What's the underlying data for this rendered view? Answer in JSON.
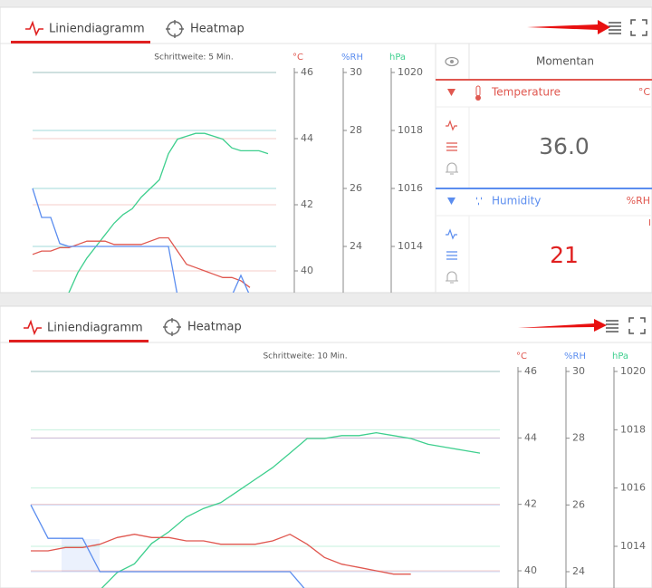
{
  "panels": [
    {
      "tabs": [
        "Liniendiagramm",
        "Heatmap"
      ],
      "chart": {
        "subtitle": "Schrittweite: 5 Min.",
        "axes": [
          {
            "unit": "°C",
            "color": "#e0574f",
            "ticks": [
              46,
              44,
              42,
              40
            ]
          },
          {
            "unit": "%RH",
            "color": "#5b8def",
            "ticks": [
              30,
              28,
              26,
              24
            ]
          },
          {
            "unit": "hPa",
            "color": "#3ecf8e",
            "ticks": [
              1020,
              1018,
              1016,
              1014
            ]
          }
        ],
        "series": [
          {
            "axis": 2,
            "color": "#3ecf8e",
            "values": [
              null,
              null,
              null,
              null,
              1012.4,
              1013.1,
              1013.6,
              1014.0,
              1014.4,
              1014.8,
              1015.1,
              1015.3,
              1015.7,
              1016.0,
              1016.3,
              1017.2,
              1017.7,
              1017.8,
              1017.9,
              1017.9,
              1017.8,
              1017.7,
              1017.4,
              1017.3,
              1017.3,
              1017.3,
              1017.2
            ]
          },
          {
            "axis": 0,
            "color": "#e0574f",
            "values": [
              40.5,
              40.6,
              40.6,
              40.7,
              40.7,
              40.8,
              40.9,
              40.9,
              40.9,
              40.8,
              40.8,
              40.8,
              40.8,
              40.9,
              41.0,
              41.0,
              40.6,
              40.2,
              40.1,
              40.0,
              39.9,
              39.8,
              39.8,
              39.7,
              39.5,
              null,
              null
            ]
          },
          {
            "axis": 1,
            "color": "#5b8def",
            "values": [
              26.0,
              25.0,
              25.0,
              24.1,
              24.0,
              24.0,
              24.0,
              24.0,
              24.0,
              24.0,
              24.0,
              24.0,
              24.0,
              24.0,
              24.0,
              24.0,
              22.3,
              22.3,
              22.3,
              22.3,
              22.3,
              22.3,
              22.3,
              23.0,
              22.3,
              null,
              null
            ]
          }
        ]
      },
      "sidebar": {
        "header": "Momentan",
        "sensors": [
          {
            "name": "Temperature",
            "unit": "°C",
            "value": "36.0"
          },
          {
            "name": "Humidity",
            "unit": "%RH",
            "value": 21,
            "marker": "I"
          }
        ]
      }
    },
    {
      "tabs": [
        "Liniendiagramm",
        "Heatmap"
      ],
      "chart": {
        "subtitle": "Schrittweite: 10 Min.",
        "axes": [
          {
            "unit": "°C",
            "color": "#e0574f",
            "ticks": [
              46,
              44,
              42,
              40
            ]
          },
          {
            "unit": "%RH",
            "color": "#5b8def",
            "ticks": [
              30,
              28,
              26,
              24
            ]
          },
          {
            "unit": "hPa",
            "color": "#3ecf8e",
            "ticks": [
              1020,
              1018,
              1016,
              1014
            ]
          }
        ],
        "series": [
          {
            "axis": 2,
            "color": "#3ecf8e",
            "values": [
              null,
              null,
              null,
              null,
              1012.5,
              1013.1,
              1013.4,
              1014.1,
              1014.5,
              1015.0,
              1015.3,
              1015.5,
              1015.9,
              1016.3,
              1016.7,
              1017.2,
              1017.7,
              1017.7,
              1017.8,
              1017.8,
              1017.9,
              1017.8,
              1017.7,
              1017.5,
              1017.4,
              1017.3,
              1017.2
            ]
          },
          {
            "axis": 0,
            "color": "#e0574f",
            "values": [
              40.6,
              40.6,
              40.7,
              40.7,
              40.8,
              41.0,
              41.1,
              41.0,
              41.0,
              40.9,
              40.9,
              40.8,
              40.8,
              40.8,
              40.9,
              41.1,
              40.8,
              40.4,
              40.2,
              40.1,
              40.0,
              39.9,
              39.9,
              null,
              null,
              null,
              null
            ]
          },
          {
            "axis": 1,
            "color": "#5b8def",
            "values": [
              26.0,
              25.0,
              25.0,
              25.0,
              24.0,
              24.0,
              24.0,
              24.0,
              24.0,
              24.0,
              24.0,
              24.0,
              24.0,
              24.0,
              24.0,
              24.0,
              23.4,
              null,
              null,
              null,
              null,
              null,
              null,
              null,
              null,
              null,
              null
            ]
          }
        ]
      }
    }
  ]
}
